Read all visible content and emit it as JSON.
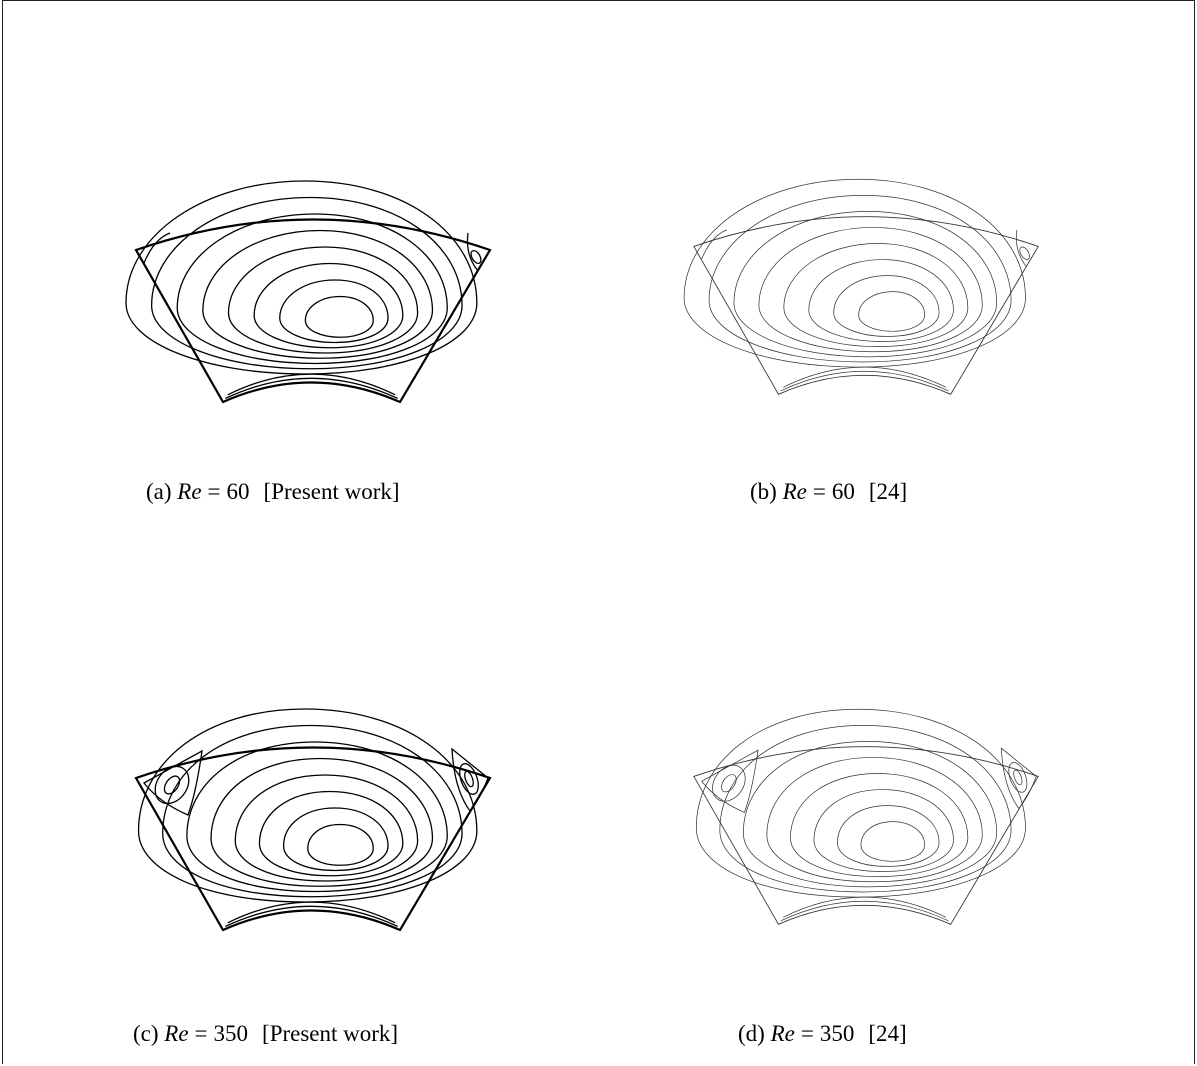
{
  "figure": {
    "panels": [
      {
        "id": "a",
        "letter": "(a)",
        "symbol": "Re",
        "equals": "=",
        "value": "60",
        "source": "[Present work]",
        "corner_vortex_left": "open",
        "corner_vortex_right": "small",
        "style": "bold"
      },
      {
        "id": "b",
        "letter": "(b)",
        "symbol": "Re",
        "equals": "=",
        "value": "60",
        "source": "[24]",
        "corner_vortex_left": "open",
        "corner_vortex_right": "small",
        "style": "thin"
      },
      {
        "id": "c",
        "letter": "(c)",
        "symbol": "Re",
        "equals": "=",
        "value": "350",
        "source": "[Present work]",
        "corner_vortex_left": "large",
        "corner_vortex_right": "large",
        "style": "bold"
      },
      {
        "id": "d",
        "letter": "(d)",
        "symbol": "Re",
        "equals": "=",
        "value": "350",
        "source": "[24]",
        "corner_vortex_left": "large",
        "corner_vortex_right": "large",
        "style": "thin"
      }
    ]
  }
}
